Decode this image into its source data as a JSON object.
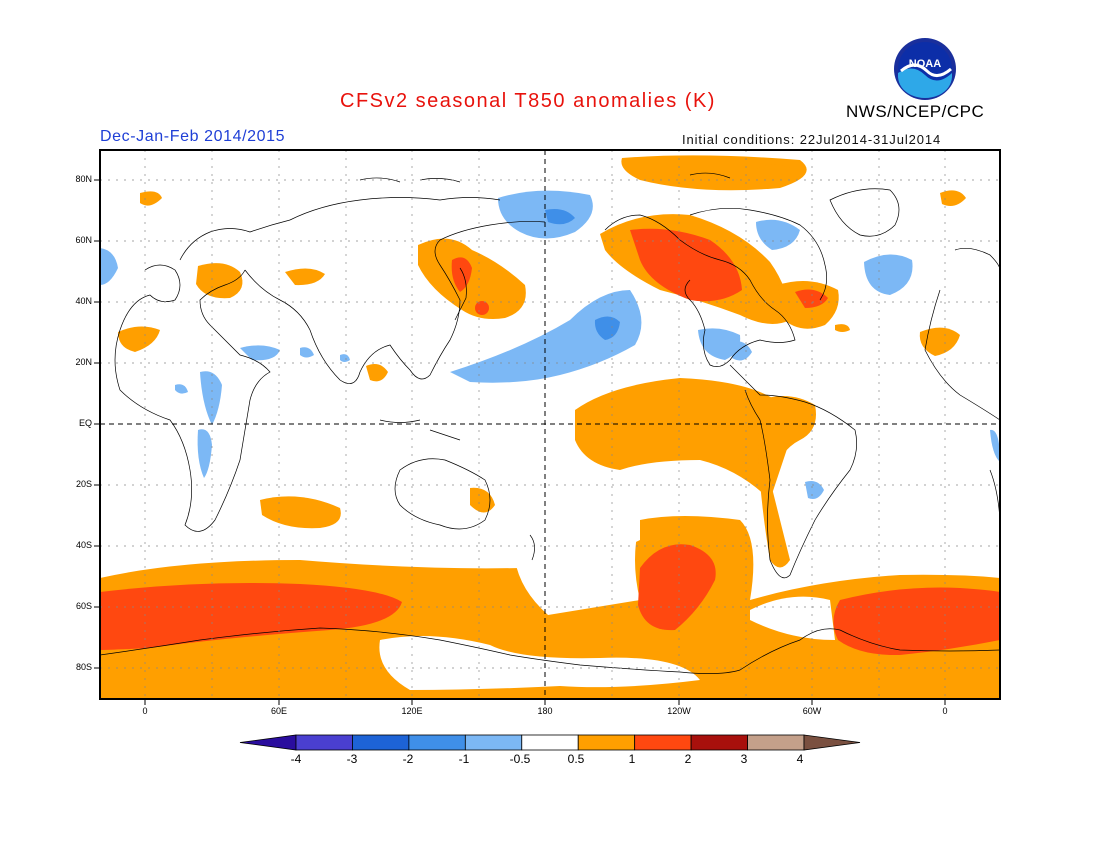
{
  "header": {
    "title": "CFSv2 seasonal T850 anomalies (K)",
    "agency": "NWS/NCEP/CPC",
    "season": "Dec-Jan-Feb 2014/2015",
    "initial_conditions": "Initial conditions: 22Jul2014-31Jul2014",
    "logo_text": "NOAA"
  },
  "map": {
    "lat_labels": [
      "80N",
      "60N",
      "40N",
      "20N",
      "EQ",
      "20S",
      "40S",
      "60S",
      "80S"
    ],
    "lon_labels": [
      "0",
      "60E",
      "120E",
      "180",
      "120W",
      "60W",
      "0"
    ],
    "dashed_reference_lines": [
      "EQ",
      "180"
    ]
  },
  "colorbar": {
    "labels": [
      "-4",
      "-3",
      "-2",
      "-1",
      "-0.5",
      "0.5",
      "1",
      "2",
      "3",
      "4"
    ],
    "colors": [
      "#2a0d9e",
      "#4a3fd0",
      "#1d63d6",
      "#3f8fe8",
      "#7cb8f5",
      "#ffffff",
      "#ff9f00",
      "#ff4810",
      "#a8100c",
      "#c4a08a",
      "#7a5040"
    ]
  },
  "legend_colors": {
    "weak_warm": "#ff9f00",
    "warm": "#ff4810",
    "weak_cold": "#7cb8f5",
    "cold": "#3f8fe8"
  }
}
